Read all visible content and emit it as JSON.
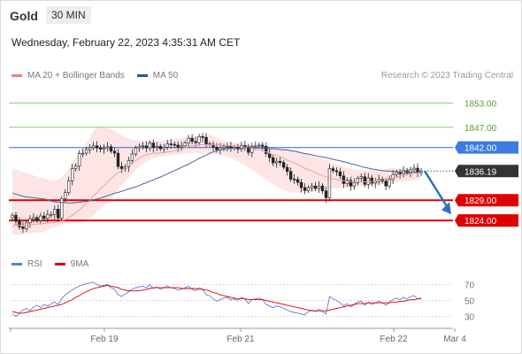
{
  "header": {
    "symbol": "Gold",
    "timeframe": "30 MIN",
    "datetime": "Wednesday, February 22, 2023 4:35:31 AM CET",
    "credit": "Research © 2023 Trading Central"
  },
  "legend_main": [
    {
      "label": "MA 20 + Bollinger Bands",
      "color": "#f08080"
    },
    {
      "label": "MA 50",
      "color": "#2f5597"
    }
  ],
  "legend_rsi": [
    {
      "label": "RSI",
      "color": "#5b7fd6"
    },
    {
      "label": "9MA",
      "color": "#e00000"
    }
  ],
  "chart_data": [
    {
      "type": "candlestick",
      "title": "",
      "ylim": [
        1819,
        1857
      ],
      "x_ticks": [
        "Feb 19",
        "Feb 21",
        "Feb 22",
        "Mar 4"
      ],
      "current_price": {
        "value": 1836.19,
        "label": "1836.19",
        "color": "#333333"
      },
      "levels": [
        {
          "value": 1853.0,
          "label": "1853.00",
          "color": "#8ccc6b",
          "text_color": "#5a9c2f",
          "style": "target"
        },
        {
          "value": 1847.0,
          "label": "1847.00",
          "color": "#8ccc6b",
          "text_color": "#5a9c2f",
          "style": "target"
        },
        {
          "value": 1842.0,
          "label": "1842.00",
          "color": "#3d7be0",
          "text_color": "#ffffff",
          "style": "pivot"
        },
        {
          "value": 1829.0,
          "label": "1829.00",
          "color": "#e00000",
          "text_color": "#ffffff",
          "style": "support"
        },
        {
          "value": 1824.0,
          "label": "1824.00",
          "color": "#e00000",
          "text_color": "#ffffff",
          "style": "support"
        }
      ],
      "forecast_arrow": {
        "from": 1836.2,
        "to": 1825.5,
        "color": "#2e6fc0"
      },
      "close_series": [
        1825.3,
        1823.8,
        1822.4,
        1822.0,
        1823.4,
        1824.4,
        1824.7,
        1824.0,
        1825.1,
        1824.5,
        1825.4,
        1825.5,
        1826.8,
        1824.6,
        1829.4,
        1830.9,
        1833.8,
        1836.8,
        1837.4,
        1840.5,
        1840.6,
        1841.5,
        1842.0,
        1842.4,
        1841.9,
        1841.6,
        1841.9,
        1842.2,
        1841.1,
        1840.6,
        1837.3,
        1836.8,
        1837.2,
        1838.8,
        1840.4,
        1841.9,
        1842.2,
        1842.4,
        1841.9,
        1843.1,
        1842.0,
        1842.3,
        1841.7,
        1842.1,
        1842.9,
        1842.8,
        1842.6,
        1842.1,
        1842.4,
        1843.1,
        1844.3,
        1843.5,
        1843.2,
        1844.7,
        1844.5,
        1842.9,
        1842.8,
        1842.1,
        1841.4,
        1841.9,
        1842.2,
        1842.3,
        1841.8,
        1842.1,
        1841.6,
        1842.5,
        1842.2,
        1840.8,
        1842.3,
        1842.4,
        1842.6,
        1842.3,
        1840.5,
        1839.5,
        1838.2,
        1838.6,
        1838.3,
        1837.1,
        1836.1,
        1834.2,
        1834.1,
        1833.4,
        1832.1,
        1831.4,
        1832.1,
        1832.5,
        1831.9,
        1832.5,
        1831.3,
        1829.6,
        1836.8,
        1836.3,
        1836.0,
        1835.0,
        1833.1,
        1833.9,
        1832.5,
        1833.3,
        1834.4,
        1834.8,
        1832.9,
        1834.5,
        1833.2,
        1833.6,
        1834.2,
        1833.7,
        1832.5,
        1834.1,
        1835.3,
        1835.8,
        1835.5,
        1836.3,
        1835.7,
        1836.5,
        1836.9,
        1835.8,
        1836.2
      ],
      "ma20_series": [
        1822.7,
        1822.8,
        1822.8,
        1822.8,
        1822.8,
        1822.9,
        1823.0,
        1823.1,
        1823.2,
        1823.3,
        1823.4,
        1823.4,
        1823.5,
        1823.6,
        1823.9,
        1824.2,
        1824.7,
        1825.3,
        1825.9,
        1826.6,
        1827.4,
        1828.2,
        1829.1,
        1830.1,
        1830.9,
        1831.8,
        1832.6,
        1833.5,
        1834.3,
        1835.1,
        1835.7,
        1836.3,
        1836.9,
        1837.5,
        1838.2,
        1838.8,
        1839.4,
        1839.9,
        1840.2,
        1840.4,
        1840.6,
        1840.6,
        1840.7,
        1840.8,
        1840.9,
        1841.0,
        1841.2,
        1841.4,
        1841.7,
        1842.0,
        1842.2,
        1842.4,
        1842.5,
        1842.7,
        1842.7,
        1842.7,
        1842.7,
        1842.7,
        1842.6,
        1842.6,
        1842.6,
        1842.5,
        1842.4,
        1842.4,
        1842.3,
        1842.2,
        1842.1,
        1842.0,
        1841.8,
        1841.6,
        1841.4,
        1841.1,
        1840.9,
        1840.6,
        1840.3,
        1840.0,
        1839.7,
        1839.3,
        1838.9,
        1838.6,
        1838.2,
        1837.8,
        1837.4,
        1836.9,
        1836.5,
        1836.2,
        1835.8,
        1835.4,
        1835.1,
        1834.8,
        1834.5,
        1834.3,
        1834.1,
        1833.9,
        1833.8,
        1833.7,
        1833.6,
        1833.5,
        1833.5,
        1833.5,
        1833.5,
        1833.5,
        1833.6,
        1833.7,
        1833.9,
        1834.0,
        1834.2,
        1834.3,
        1834.5,
        1834.7,
        1834.9,
        1835.1,
        1835.3,
        1835.5,
        1835.6,
        1835.8,
        1835.9
      ],
      "ma50_series": [
        1830.7,
        1830.5,
        1830.2,
        1830.0,
        1829.8,
        1829.7,
        1829.6,
        1829.5,
        1829.4,
        1829.3,
        1829.1,
        1828.8,
        1828.6,
        1828.5,
        1828.4,
        1828.4,
        1828.3,
        1828.3,
        1828.4,
        1828.5,
        1828.6,
        1828.7,
        1828.9,
        1829.1,
        1829.3,
        1829.5,
        1829.8,
        1830.1,
        1830.4,
        1830.7,
        1830.9,
        1831.2,
        1831.5,
        1831.8,
        1832.0,
        1832.3,
        1832.6,
        1833.0,
        1833.3,
        1833.7,
        1834.0,
        1834.4,
        1834.7,
        1835.1,
        1835.5,
        1835.9,
        1836.3,
        1836.7,
        1837.1,
        1837.5,
        1837.9,
        1838.4,
        1838.8,
        1839.3,
        1839.7,
        1840.1,
        1840.6,
        1840.9,
        1841.2,
        1841.4,
        1841.6,
        1841.7,
        1841.8,
        1841.8,
        1841.8,
        1841.9,
        1841.9,
        1842.0,
        1842.0,
        1841.9,
        1841.9,
        1841.8,
        1841.8,
        1841.7,
        1841.7,
        1841.6,
        1841.5,
        1841.4,
        1841.4,
        1841.2,
        1841.1,
        1840.9,
        1840.7,
        1840.5,
        1840.4,
        1840.2,
        1840.0,
        1839.8,
        1839.7,
        1839.5,
        1839.3,
        1839.1,
        1838.9,
        1838.7,
        1838.5,
        1838.3,
        1838.0,
        1837.8,
        1837.6,
        1837.3,
        1837.1,
        1836.9,
        1836.7,
        1836.6,
        1836.4,
        1836.3,
        1836.2,
        1836.2,
        1836.1,
        1836.1,
        1836.1,
        1836.0,
        1836.0,
        1836.0,
        1835.9,
        1835.9,
        1835.9
      ],
      "bb_upper": [
        1836.9,
        1836.6,
        1836.2,
        1835.9,
        1835.6,
        1835.4,
        1835.1,
        1834.9,
        1834.6,
        1834.4,
        1834.1,
        1833.8,
        1833.8,
        1834.0,
        1834.7,
        1835.6,
        1836.8,
        1838.3,
        1839.5,
        1840.7,
        1841.8,
        1843.0,
        1844.4,
        1846.2,
        1846.9,
        1846.9,
        1846.8,
        1846.7,
        1846.5,
        1846.2,
        1845.6,
        1845.0,
        1844.6,
        1844.3,
        1844.0,
        1843.8,
        1843.5,
        1843.5,
        1843.5,
        1843.5,
        1843.5,
        1843.6,
        1843.7,
        1843.8,
        1843.9,
        1844.0,
        1844.1,
        1844.2,
        1844.3,
        1844.4,
        1844.5,
        1844.6,
        1844.7,
        1844.8,
        1844.9,
        1845.1,
        1845.1,
        1844.8,
        1844.4,
        1844.0,
        1843.7,
        1843.5,
        1843.4,
        1843.2,
        1843.1,
        1843.0,
        1842.9,
        1842.8,
        1842.7,
        1842.6,
        1842.5,
        1842.4,
        1842.3,
        1842.2,
        1842.1,
        1842.0,
        1841.9,
        1841.8,
        1841.7,
        1841.6,
        1841.4,
        1841.2,
        1841.0,
        1840.7,
        1840.4,
        1840.1,
        1839.8,
        1839.5,
        1839.2,
        1838.9,
        1838.5,
        1838.1,
        1837.8,
        1837.5,
        1837.2,
        1836.9,
        1836.8,
        1836.7,
        1836.6,
        1836.5,
        1836.5,
        1836.5,
        1836.5,
        1836.5,
        1836.6,
        1836.7,
        1836.8,
        1836.9,
        1837.0,
        1837.0,
        1837.0,
        1837.0,
        1836.9,
        1836.8,
        1836.7,
        1836.6,
        1836.5
      ],
      "bb_lower": [
        1820.4,
        1820.4,
        1820.5,
        1820.6,
        1820.7,
        1820.8,
        1820.9,
        1821.0,
        1821.1,
        1821.3,
        1821.6,
        1822.0,
        1822.4,
        1822.7,
        1822.9,
        1823.1,
        1823.2,
        1823.3,
        1823.3,
        1823.4,
        1823.6,
        1823.9,
        1824.6,
        1825.3,
        1826.0,
        1826.8,
        1827.6,
        1828.5,
        1829.5,
        1830.5,
        1831.5,
        1832.6,
        1833.6,
        1834.6,
        1835.5,
        1836.4,
        1837.2,
        1837.9,
        1838.5,
        1839.0,
        1839.4,
        1839.6,
        1839.8,
        1839.9,
        1840.0,
        1840.1,
        1840.2,
        1840.3,
        1840.4,
        1840.5,
        1840.6,
        1840.7,
        1840.7,
        1840.6,
        1840.6,
        1840.5,
        1840.4,
        1840.4,
        1840.3,
        1840.2,
        1840.0,
        1839.7,
        1839.4,
        1839.0,
        1838.6,
        1838.1,
        1837.6,
        1837.1,
        1836.5,
        1835.9,
        1835.3,
        1834.7,
        1834.1,
        1833.5,
        1832.9,
        1832.4,
        1831.9,
        1831.5,
        1831.2,
        1831.0,
        1830.9,
        1830.9,
        1831.0,
        1831.1,
        1831.2,
        1831.3,
        1831.4,
        1831.5,
        1831.6,
        1831.7,
        1831.8,
        1831.8,
        1831.9,
        1831.9,
        1832.0,
        1832.0,
        1832.1,
        1832.2,
        1832.3,
        1832.4,
        1832.5,
        1832.6,
        1832.7,
        1832.8,
        1832.9,
        1833.0,
        1833.1,
        1833.2,
        1833.3,
        1833.4,
        1833.5,
        1833.6,
        1833.7,
        1833.8,
        1833.9,
        1834.0,
        1834.1
      ]
    },
    {
      "type": "line",
      "title": "",
      "ylim": [
        25,
        75
      ],
      "y_ticks": [
        30,
        50,
        70
      ],
      "series": [
        {
          "name": "RSI",
          "color": "#5b7fd6",
          "values": [
            33,
            30,
            34,
            38,
            40,
            37,
            42,
            44,
            41,
            45,
            43,
            46,
            48,
            45,
            52,
            57,
            60,
            63,
            66,
            68,
            70,
            71,
            72,
            73,
            70,
            68,
            69,
            70,
            66,
            64,
            57,
            55,
            58,
            61,
            64,
            66,
            67,
            68,
            66,
            70,
            65,
            67,
            64,
            66,
            68,
            66,
            65,
            63,
            64,
            66,
            68,
            64,
            62,
            66,
            64,
            57,
            56,
            52,
            49,
            51,
            53,
            54,
            51,
            52,
            50,
            54,
            52,
            46,
            51,
            52,
            53,
            51,
            45,
            43,
            41,
            43,
            42,
            40,
            38,
            36,
            35,
            34,
            33,
            32,
            36,
            38,
            36,
            39,
            36,
            33,
            55,
            52,
            50,
            47,
            43,
            46,
            42,
            45,
            48,
            49,
            44,
            48,
            45,
            47,
            49,
            47,
            44,
            48,
            51,
            53,
            51,
            54,
            52,
            55,
            56,
            52,
            53
          ]
        },
        {
          "name": "9MA",
          "color": "#e00000",
          "values": [
            36,
            35,
            34,
            34,
            35,
            36,
            37,
            38,
            39,
            40,
            41,
            42,
            43,
            44,
            45,
            47,
            49,
            51,
            54,
            56,
            59,
            61,
            63,
            65,
            66,
            67,
            68,
            69,
            68,
            67,
            66,
            64,
            63,
            62,
            62,
            62,
            62,
            63,
            64,
            65,
            66,
            66,
            66,
            66,
            66,
            66,
            66,
            66,
            65,
            65,
            65,
            65,
            65,
            64,
            64,
            63,
            62,
            60,
            59,
            57,
            56,
            55,
            54,
            53,
            52,
            52,
            52,
            51,
            51,
            51,
            51,
            51,
            50,
            49,
            48,
            47,
            46,
            45,
            44,
            43,
            42,
            41,
            40,
            39,
            38,
            37,
            37,
            37,
            37,
            37,
            38,
            39,
            40,
            41,
            42,
            43,
            44,
            45,
            46,
            46,
            46,
            47,
            47,
            47,
            47,
            47,
            47,
            47,
            48,
            48,
            49,
            49,
            50,
            51,
            51,
            52,
            52
          ]
        }
      ]
    }
  ]
}
